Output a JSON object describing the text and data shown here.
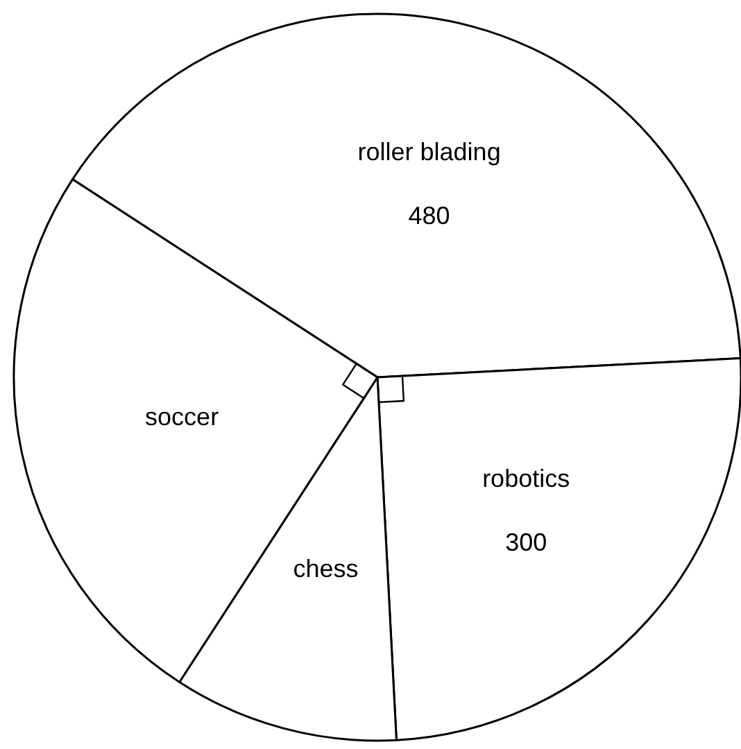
{
  "chart_data": {
    "type": "pie",
    "categories": [
      "roller blading",
      "robotics",
      "chess",
      "soccer"
    ],
    "values": [
      480,
      300,
      120,
      300
    ],
    "value_labels": [
      "480",
      "300",
      null,
      null
    ],
    "colors": [
      "#ffffff",
      "#ffffff",
      "#ffffff",
      "#ffffff"
    ]
  }
}
